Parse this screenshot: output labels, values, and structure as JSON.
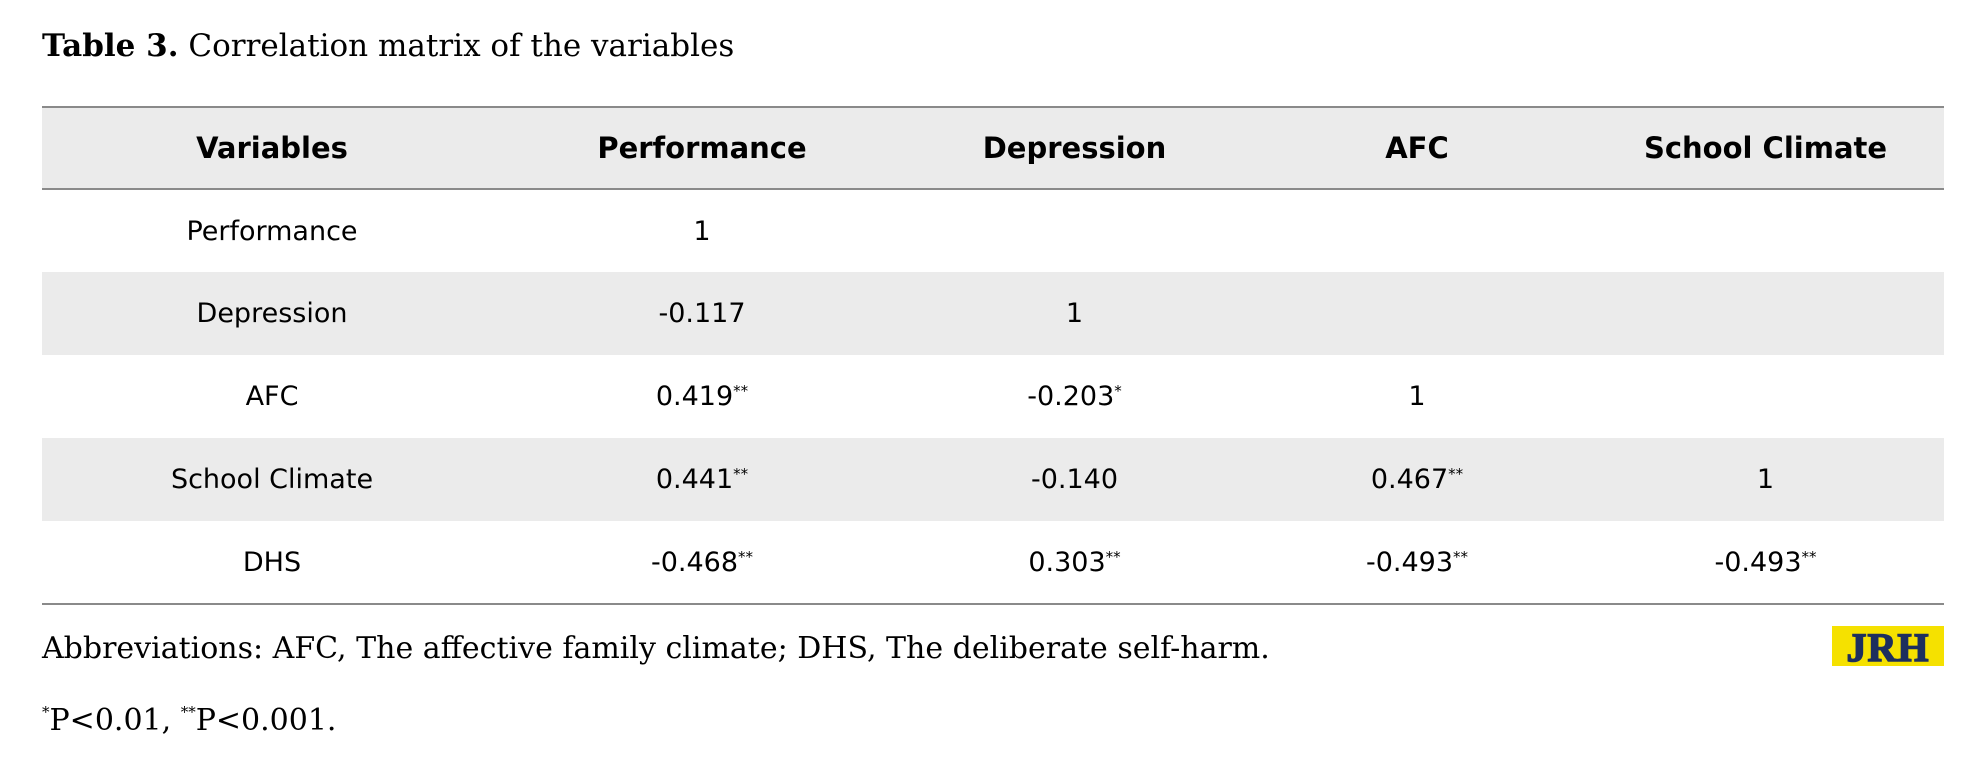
{
  "caption": {
    "label": "Table 3.",
    "text": " Correlation matrix of the variables"
  },
  "table": {
    "headers": [
      "Variables",
      "Performance",
      "Depression",
      "AFC",
      "School Climate"
    ],
    "rows": [
      [
        {
          "v": "Performance"
        },
        {
          "v": "1"
        },
        {
          "v": ""
        },
        {
          "v": ""
        },
        {
          "v": ""
        }
      ],
      [
        {
          "v": "Depression"
        },
        {
          "v": "-0.117"
        },
        {
          "v": "1"
        },
        {
          "v": ""
        },
        {
          "v": ""
        }
      ],
      [
        {
          "v": "AFC"
        },
        {
          "v": "0.419",
          "sig": "**"
        },
        {
          "v": "-0.203",
          "sig": "*"
        },
        {
          "v": "1"
        },
        {
          "v": ""
        }
      ],
      [
        {
          "v": "School Climate"
        },
        {
          "v": "0.441",
          "sig": "**"
        },
        {
          "v": "-0.140"
        },
        {
          "v": "0.467",
          "sig": "**"
        },
        {
          "v": "1"
        }
      ],
      [
        {
          "v": "DHS"
        },
        {
          "v": "-0.468",
          "sig": "**"
        },
        {
          "v": "0.303",
          "sig": "**"
        },
        {
          "v": "-0.493",
          "sig": "**"
        },
        {
          "v": "-0.493",
          "sig": "**"
        }
      ]
    ]
  },
  "abbreviations": "Abbreviations: AFC, The affective family climate; DHS, The deliberate self-harm.",
  "footnote": {
    "sig1_marker": "*",
    "sig1_text": "P<0.01, ",
    "sig2_marker": "**",
    "sig2_text": "P<0.001."
  },
  "logo": {
    "text": "JRH",
    "bg_color": "#f5e100",
    "fg_color": "#1d2f5e"
  }
}
